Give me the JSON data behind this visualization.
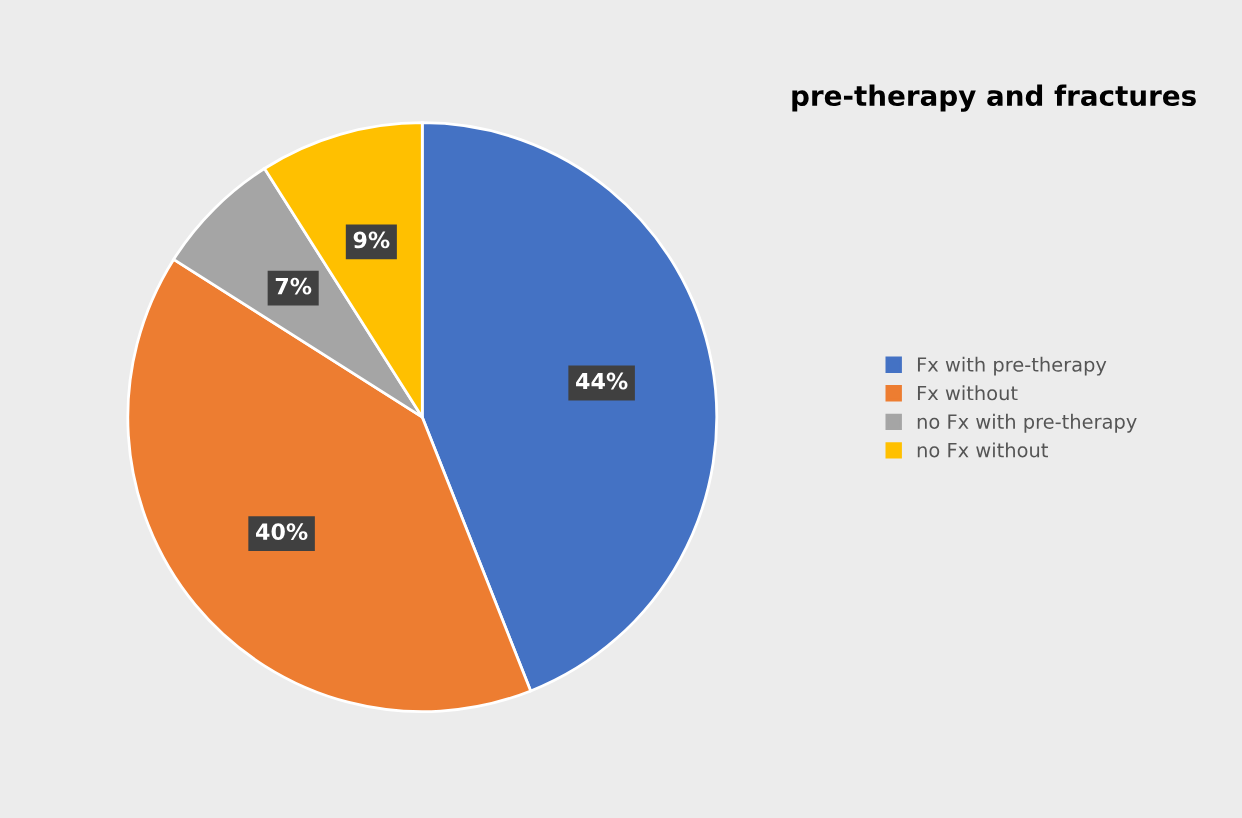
{
  "chart_data": {
    "type": "pie",
    "title": "pre-therapy and fractures",
    "categories": [
      "Fx with pre-therapy",
      "Fx without",
      "no Fx with pre-therapy",
      "no Fx without"
    ],
    "values": [
      44,
      40,
      7,
      9
    ],
    "colors": [
      "#4472c4",
      "#ed7d31",
      "#a5a5a5",
      "#ffc000"
    ],
    "value_labels": [
      "44%",
      "40%",
      "7%",
      "9%"
    ],
    "legend": "right"
  }
}
